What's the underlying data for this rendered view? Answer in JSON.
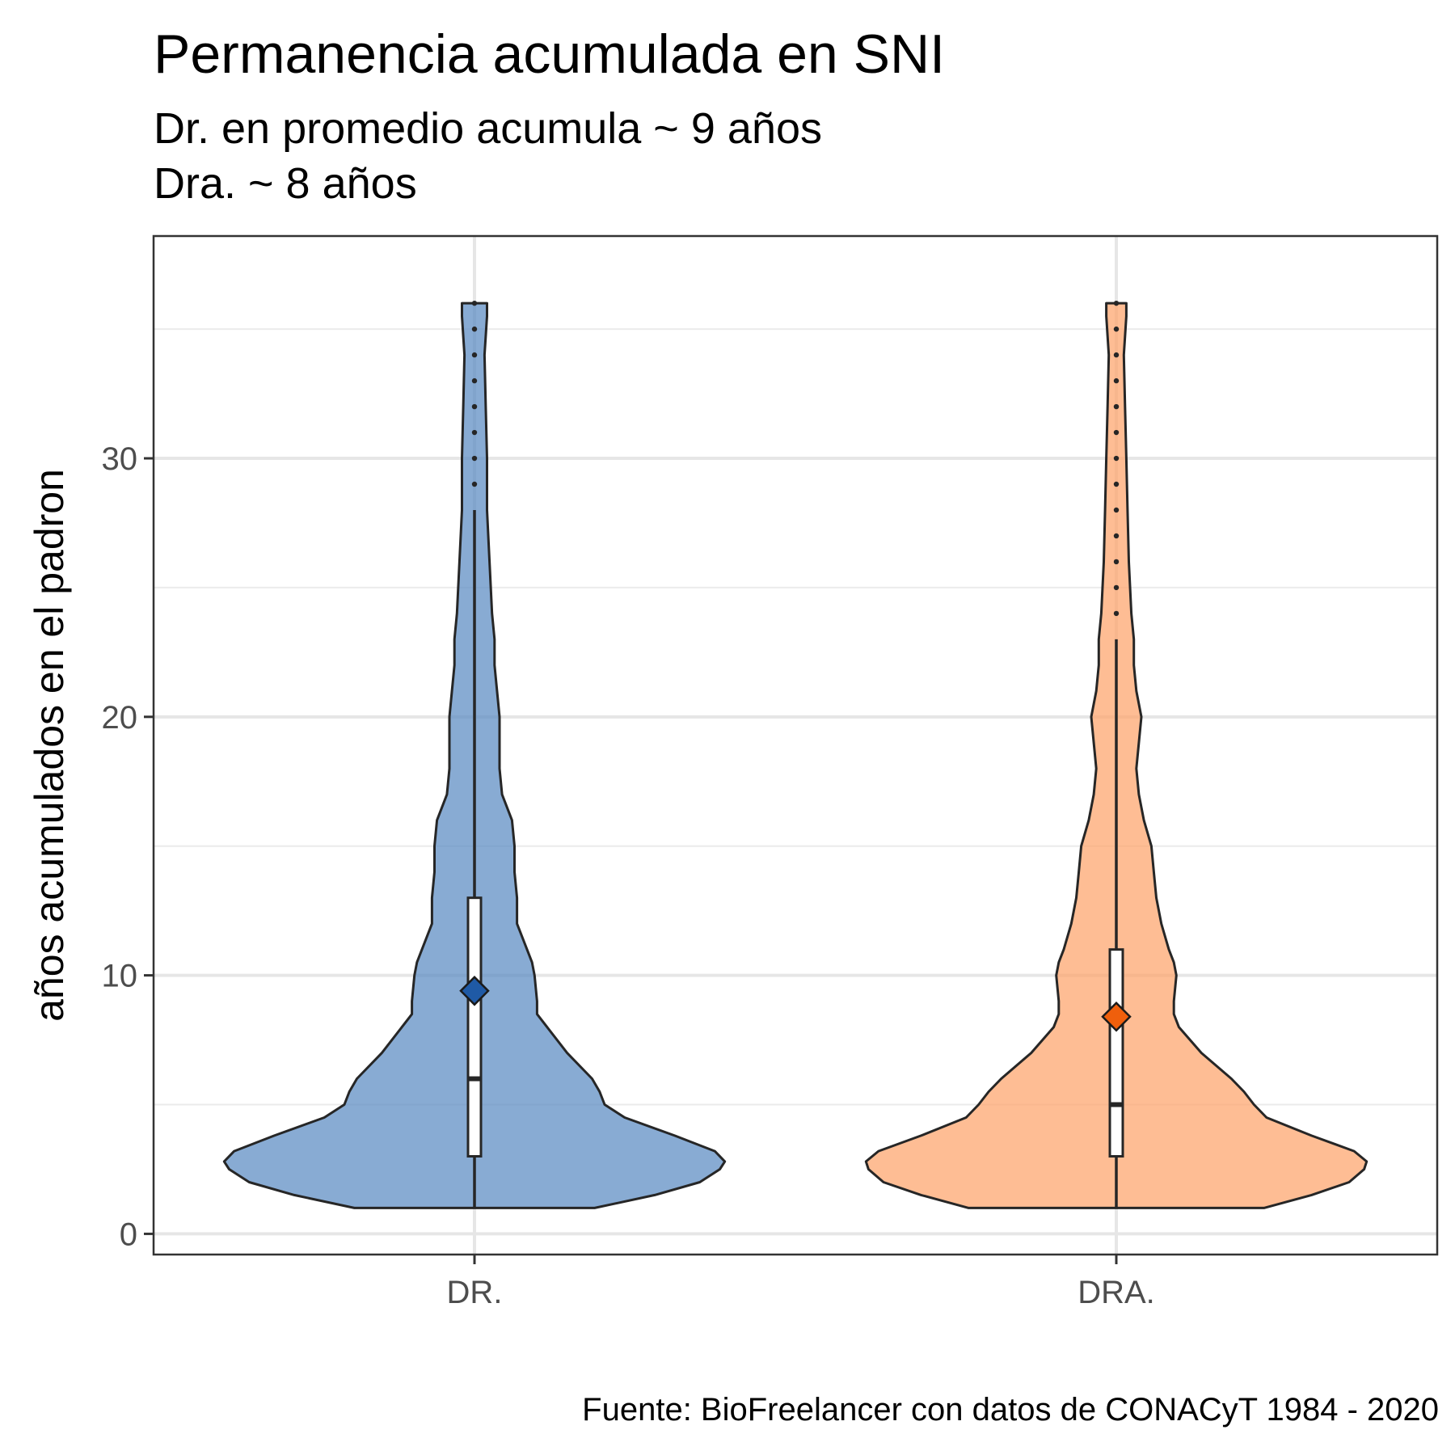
{
  "chart_data": {
    "type": "violin",
    "title": "Permanencia acumulada en SNI",
    "subtitle": [
      "Dr. en promedio acumula ~ 9 años",
      "Dra. ~ 8 años"
    ],
    "caption": "Fuente: BioFreelancer con datos de CONACyT 1984 - 2020",
    "xlabel": "",
    "ylabel": "años acumulados en el padron",
    "ylim": [
      -0.8,
      38.6
    ],
    "yticks": [
      0,
      10,
      20,
      30
    ],
    "grid": true,
    "legend": "none",
    "categories": [
      "DR.",
      "DRA."
    ],
    "series": [
      {
        "category": "DR.",
        "color": "#5a8bc2",
        "mean_color": "#1f5aa6",
        "min": 1,
        "q1": 3,
        "median": 6,
        "q3": 13,
        "whisker_high": 28,
        "max": 36,
        "mean": 9.4,
        "outliers": [
          29,
          30,
          31,
          32,
          33,
          34,
          35,
          36
        ],
        "density_profile": [
          [
            1,
            0.48
          ],
          [
            1.5,
            0.72
          ],
          [
            2,
            0.9
          ],
          [
            2.5,
            0.98
          ],
          [
            2.8,
            1.0
          ],
          [
            3.2,
            0.96
          ],
          [
            3.8,
            0.8
          ],
          [
            4.5,
            0.6
          ],
          [
            5,
            0.52
          ],
          [
            5.5,
            0.5
          ],
          [
            6,
            0.47
          ],
          [
            7,
            0.37
          ],
          [
            8,
            0.29
          ],
          [
            8.5,
            0.25
          ],
          [
            9,
            0.25
          ],
          [
            10,
            0.24
          ],
          [
            10.5,
            0.23
          ],
          [
            11,
            0.21
          ],
          [
            12,
            0.17
          ],
          [
            13,
            0.17
          ],
          [
            14,
            0.16
          ],
          [
            15,
            0.16
          ],
          [
            16,
            0.15
          ],
          [
            17,
            0.11
          ],
          [
            18,
            0.1
          ],
          [
            19,
            0.1
          ],
          [
            20,
            0.1
          ],
          [
            21,
            0.09
          ],
          [
            22,
            0.08
          ],
          [
            23,
            0.08
          ],
          [
            24,
            0.07
          ],
          [
            26,
            0.06
          ],
          [
            28,
            0.05
          ],
          [
            30,
            0.05
          ],
          [
            32,
            0.045
          ],
          [
            34,
            0.04
          ],
          [
            35.5,
            0.05
          ],
          [
            36,
            0.05
          ]
        ]
      },
      {
        "category": "DRA.",
        "color": "#fda46b",
        "mean_color": "#ef5f0c",
        "min": 1,
        "q1": 3,
        "median": 5,
        "q3": 11,
        "whisker_high": 23,
        "max": 36,
        "mean": 8.4,
        "outliers": [
          24,
          25,
          26,
          27,
          28,
          29,
          30,
          31,
          32,
          33,
          34,
          35,
          36
        ],
        "density_profile": [
          [
            1,
            0.59
          ],
          [
            1.5,
            0.78
          ],
          [
            2,
            0.93
          ],
          [
            2.5,
            0.99
          ],
          [
            2.8,
            1.0
          ],
          [
            3.2,
            0.95
          ],
          [
            3.8,
            0.78
          ],
          [
            4.5,
            0.6
          ],
          [
            5,
            0.55
          ],
          [
            5.5,
            0.51
          ],
          [
            6,
            0.46
          ],
          [
            7,
            0.34
          ],
          [
            8,
            0.25
          ],
          [
            8.5,
            0.23
          ],
          [
            9,
            0.23
          ],
          [
            10,
            0.24
          ],
          [
            10.5,
            0.23
          ],
          [
            11,
            0.21
          ],
          [
            12,
            0.18
          ],
          [
            13,
            0.16
          ],
          [
            14,
            0.15
          ],
          [
            15,
            0.14
          ],
          [
            16,
            0.11
          ],
          [
            17,
            0.09
          ],
          [
            18,
            0.08
          ],
          [
            19,
            0.09
          ],
          [
            20,
            0.1
          ],
          [
            21,
            0.08
          ],
          [
            22,
            0.07
          ],
          [
            23,
            0.07
          ],
          [
            24,
            0.06
          ],
          [
            26,
            0.05
          ],
          [
            28,
            0.045
          ],
          [
            30,
            0.04
          ],
          [
            32,
            0.035
          ],
          [
            34,
            0.03
          ],
          [
            35.5,
            0.04
          ],
          [
            36,
            0.04
          ]
        ]
      }
    ]
  }
}
